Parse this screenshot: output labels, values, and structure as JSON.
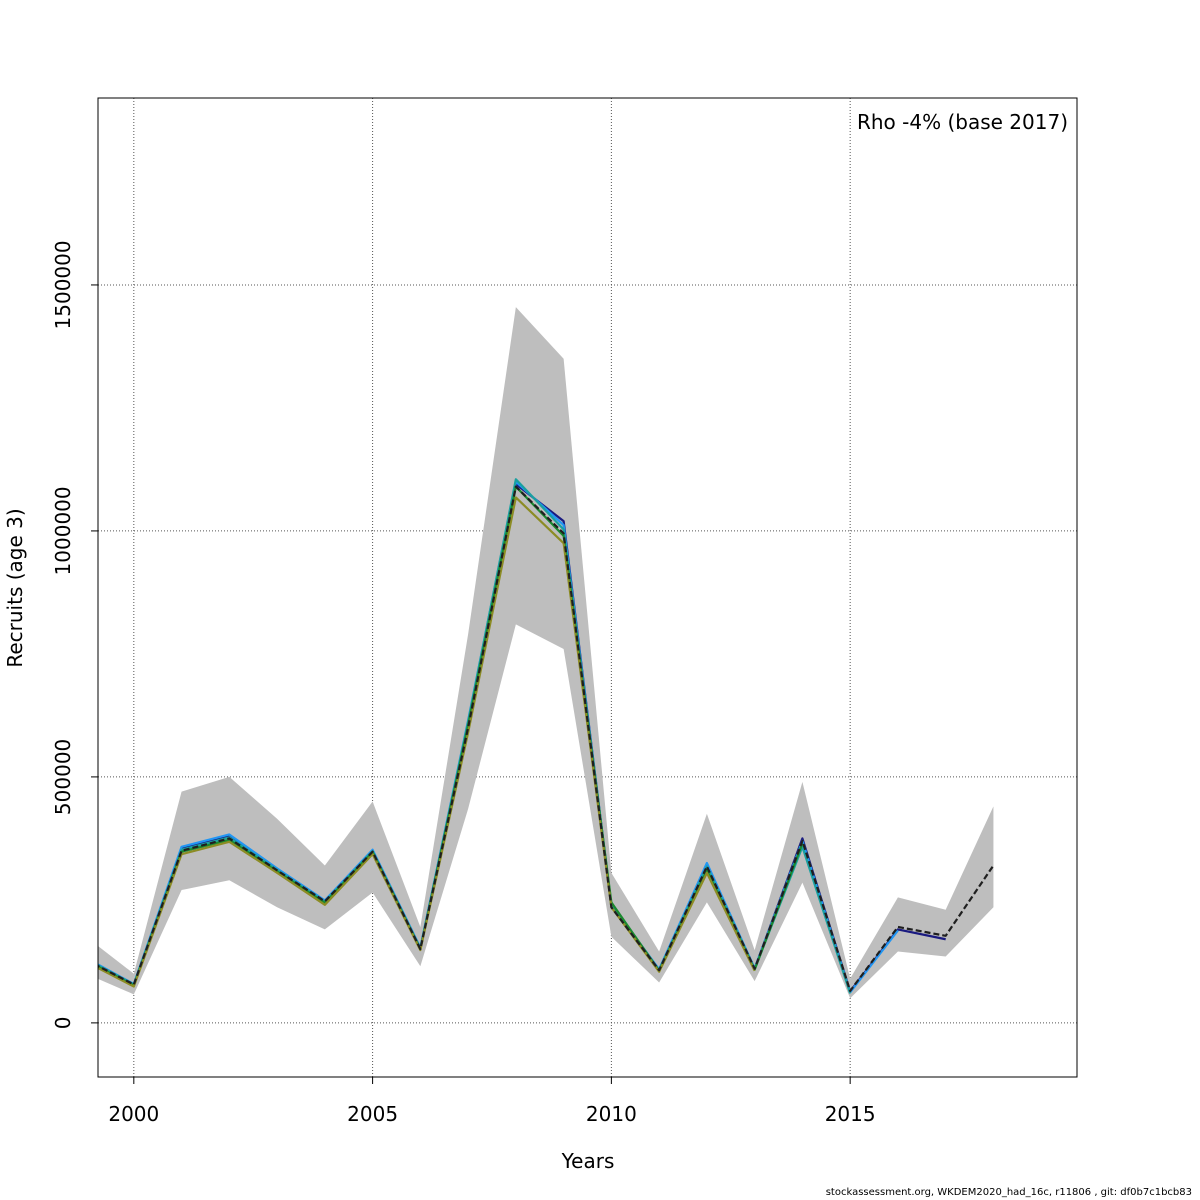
{
  "chart_data": {
    "type": "line",
    "xlabel": "Years",
    "ylabel": "Recruits (age 3)",
    "annotation": "Rho -4% (base 2017)",
    "xlim": [
      1999.25,
      2019.75
    ],
    "ylim": [
      -110000,
      1880000
    ],
    "x_ticks": [
      2000,
      2005,
      2010,
      2015
    ],
    "y_ticks": [
      0,
      500000,
      1000000,
      1500000
    ],
    "grid": true,
    "confidence_band": {
      "color": "#bebebe",
      "x": [
        1999,
        2000,
        2001,
        2002,
        2003,
        2004,
        2005,
        2006,
        2007,
        2008,
        2009,
        2010,
        2011,
        2012,
        2013,
        2014,
        2015,
        2016,
        2017,
        2018
      ],
      "upper": [
        175000,
        100000,
        470000,
        500000,
        415000,
        320000,
        450000,
        195000,
        790000,
        1455000,
        1350000,
        305000,
        145000,
        425000,
        148000,
        490000,
        90000,
        255000,
        230000,
        440000
      ],
      "lower": [
        100000,
        58000,
        270000,
        290000,
        235000,
        190000,
        265000,
        115000,
        435000,
        810000,
        760000,
        175000,
        82000,
        245000,
        85000,
        285000,
        50000,
        145000,
        135000,
        235000
      ]
    },
    "series": [
      {
        "color": "#1f1f1f",
        "dashed": true,
        "x": [
          1999,
          2000,
          2001,
          2002,
          2003,
          2004,
          2005,
          2006,
          2007,
          2008,
          2009,
          2010,
          2011,
          2012,
          2013,
          2014,
          2015,
          2016,
          2017,
          2018
        ],
        "values": [
          128000,
          78000,
          350000,
          375000,
          310000,
          247000,
          348000,
          150000,
          600000,
          1090000,
          995000,
          235000,
          107000,
          318000,
          110000,
          370000,
          65000,
          195000,
          177000,
          320000
        ]
      },
      {
        "color": "#1a1a80",
        "x": [
          1999,
          2000,
          2001,
          2002,
          2003,
          2004,
          2005,
          2006,
          2007,
          2008,
          2009,
          2010,
          2011,
          2012,
          2013,
          2014,
          2015,
          2016,
          2017
        ],
        "values": [
          130000,
          78000,
          355000,
          380000,
          312000,
          248000,
          350000,
          152000,
          610000,
          1095000,
          1020000,
          238000,
          108000,
          320000,
          110000,
          375000,
          64000,
          190000,
          170000
        ]
      },
      {
        "color": "#2196f3",
        "x": [
          1999,
          2000,
          2001,
          2002,
          2003,
          2004,
          2005,
          2006,
          2007,
          2008,
          2009,
          2010,
          2011,
          2012,
          2013,
          2014,
          2015,
          2016
        ],
        "values": [
          132000,
          79000,
          358000,
          383000,
          314000,
          249000,
          352000,
          153000,
          615000,
          1100000,
          1012000,
          240000,
          109000,
          325000,
          111000,
          370000,
          62000,
          188000
        ]
      },
      {
        "color": "#1aa0a0",
        "x": [
          1999,
          2000,
          2001,
          2002,
          2003,
          2004,
          2005,
          2006,
          2007,
          2008,
          2009,
          2010,
          2011,
          2012,
          2013,
          2014,
          2015
        ],
        "values": [
          130000,
          78000,
          352000,
          377000,
          311000,
          246000,
          349000,
          151000,
          612000,
          1105000,
          1003000,
          238000,
          107000,
          318000,
          109000,
          358000,
          60000
        ]
      },
      {
        "color": "#1a8a2e",
        "x": [
          1999,
          2000,
          2001,
          2002,
          2003,
          2004,
          2005,
          2006,
          2007,
          2008,
          2009,
          2010,
          2011,
          2012,
          2013,
          2014
        ],
        "values": [
          127000,
          76000,
          348000,
          372000,
          308000,
          244000,
          347000,
          150000,
          605000,
          1090000,
          990000,
          245000,
          106000,
          310000,
          108000,
          365000
        ]
      },
      {
        "color": "#8c8c24",
        "x": [
          1999,
          2000,
          2001,
          2002,
          2003,
          2004,
          2005,
          2006,
          2007,
          2008,
          2009,
          2010,
          2011,
          2012,
          2013
        ],
        "values": [
          124000,
          74000,
          343000,
          368000,
          305000,
          240000,
          343000,
          148000,
          590000,
          1068000,
          975000,
          235000,
          104000,
          305000,
          106000
        ]
      }
    ]
  },
  "footer": "stockassessment.org, WKDEM2020_had_16c, r11806 , git: df0b7c1bcb83"
}
